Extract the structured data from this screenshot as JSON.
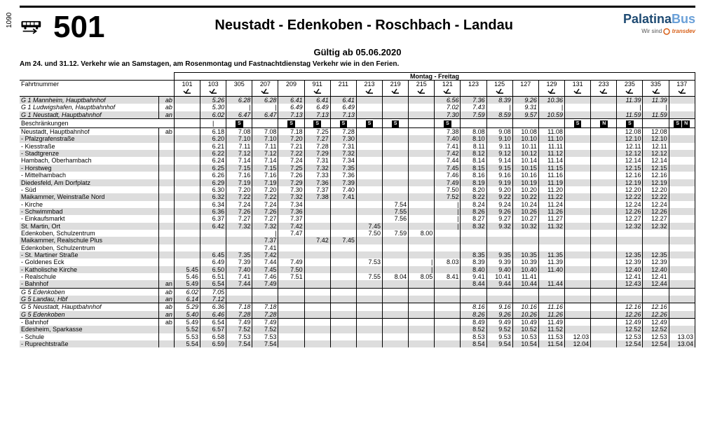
{
  "side_number": "1090",
  "route_number": "501",
  "route_title": "Neustadt - Edenkoben - Roschbach - Landau",
  "brand": {
    "main_a": "Palatina",
    "main_b": "Bus",
    "sub_pre": "Wir sind ",
    "sub_orange": "transdev"
  },
  "valid_from": "Gültig ab 05.06.2020",
  "holiday_note": "Am 24. und 31.12. Verkehr wie an Samstagen, am Rosenmontag und Fastnachtdienstag Verkehr wie in den Ferien.",
  "days_header": "Montag - Freitag",
  "trip_label": "Fahrtnummer",
  "restrict_label": "Beschränkungen",
  "trips": [
    "101",
    "103",
    "305",
    "207",
    "209",
    "911",
    "211",
    "213",
    "219",
    "215",
    "121",
    "123",
    "125",
    "127",
    "129",
    "131",
    "233",
    "235",
    "335",
    "137"
  ],
  "xicon_cols": [
    0,
    1,
    3,
    5,
    7,
    8,
    9,
    10,
    12,
    14,
    15,
    16,
    17,
    18,
    19
  ],
  "s_cols": [
    2,
    4,
    5,
    6,
    7,
    8,
    10,
    15,
    17,
    19
  ],
  "n_cols": [
    16,
    19
  ],
  "stops": [
    {
      "n": "G 1 Mannheim, Hauptbahnhof",
      "d": "ab",
      "sh": 1,
      "it": 1,
      "bt": 1,
      "t": [
        "",
        "5.26",
        "6.28",
        "6.28",
        "6.41",
        "6.41",
        "6.41",
        "",
        "",
        "",
        "6.56",
        "7.36",
        "8.39",
        "9.26",
        "10.36",
        "",
        "",
        "11.39",
        "11.39",
        ""
      ]
    },
    {
      "n": "G 1 Ludwigshafen, Hauptbahnhof",
      "d": "ab",
      "sh": 0,
      "it": 1,
      "t": [
        "",
        "5.30",
        "|",
        "|",
        "6.49",
        "6.49",
        "6.49",
        "",
        "",
        "",
        "7.02",
        "7.43",
        "|",
        "9.31",
        "|",
        "",
        "",
        "|",
        "|",
        ""
      ]
    },
    {
      "n": "G 1 Neustadt, Hauptbahnhof",
      "d": "an",
      "sh": 1,
      "it": 1,
      "bb": 1,
      "t": [
        "",
        "6.02",
        "6.47",
        "6.47",
        "7.13",
        "7.13",
        "7.13",
        "",
        "",
        "",
        "7.30",
        "7.59",
        "8.59",
        "9.57",
        "10.59",
        "",
        "",
        "11.59",
        "11.59",
        ""
      ]
    },
    {
      "n": "Neustadt, Hauptbahnhof",
      "d": "ab",
      "sh": 0,
      "bt": 1,
      "t": [
        "",
        "6.18",
        "7.08",
        "7.08",
        "7.18",
        "7.25",
        "7.28",
        "",
        "",
        "",
        "7.38",
        "8.08",
        "9.08",
        "10.08",
        "11.08",
        "",
        "",
        "12.08",
        "12.08",
        ""
      ]
    },
    {
      "n": "- Pfalzgrafenstraße",
      "d": "",
      "sh": 1,
      "t": [
        "",
        "6.20",
        "7.10",
        "7.10",
        "7.20",
        "7.27",
        "7.30",
        "",
        "",
        "",
        "7.40",
        "8.10",
        "9.10",
        "10.10",
        "11.10",
        "",
        "",
        "12.10",
        "12.10",
        ""
      ]
    },
    {
      "n": "- Kiesstraße",
      "d": "",
      "sh": 0,
      "t": [
        "",
        "6.21",
        "7.11",
        "7.11",
        "7.21",
        "7.28",
        "7.31",
        "",
        "",
        "",
        "7.41",
        "8.11",
        "9.11",
        "10.11",
        "11.11",
        "",
        "",
        "12.11",
        "12.11",
        ""
      ]
    },
    {
      "n": "- Stadtgrenze",
      "d": "",
      "sh": 1,
      "t": [
        "",
        "6.22",
        "7.12",
        "7.12",
        "7.22",
        "7.29",
        "7.32",
        "",
        "",
        "",
        "7.42",
        "8.12",
        "9.12",
        "10.12",
        "11.12",
        "",
        "",
        "12.12",
        "12.12",
        ""
      ]
    },
    {
      "n": "Hambach, Oberhambach",
      "d": "",
      "sh": 0,
      "t": [
        "",
        "6.24",
        "7.14",
        "7.14",
        "7.24",
        "7.31",
        "7.34",
        "",
        "",
        "",
        "7.44",
        "8.14",
        "9.14",
        "10.14",
        "11.14",
        "",
        "",
        "12.14",
        "12.14",
        ""
      ]
    },
    {
      "n": "- Horstweg",
      "d": "",
      "sh": 1,
      "t": [
        "",
        "6.25",
        "7.15",
        "7.15",
        "7.25",
        "7.32",
        "7.35",
        "",
        "",
        "",
        "7.45",
        "8.15",
        "9.15",
        "10.15",
        "11.15",
        "",
        "",
        "12.15",
        "12.15",
        ""
      ]
    },
    {
      "n": "- Mittelhambach",
      "d": "",
      "sh": 0,
      "t": [
        "",
        "6.26",
        "7.16",
        "7.16",
        "7.26",
        "7.33",
        "7.36",
        "",
        "",
        "",
        "7.46",
        "8.16",
        "9.16",
        "10.16",
        "11.16",
        "",
        "",
        "12.16",
        "12.16",
        ""
      ]
    },
    {
      "n": "Diedesfeld, Am Dorfplatz",
      "d": "",
      "sh": 1,
      "t": [
        "",
        "6.29",
        "7.19",
        "7.19",
        "7.29",
        "7.36",
        "7.39",
        "",
        "",
        "",
        "7.49",
        "8.19",
        "9.19",
        "10.19",
        "11.19",
        "",
        "",
        "12.19",
        "12.19",
        ""
      ]
    },
    {
      "n": "- Süd",
      "d": "",
      "sh": 0,
      "t": [
        "",
        "6.30",
        "7.20",
        "7.20",
        "7.30",
        "7.37",
        "7.40",
        "",
        "",
        "",
        "7.50",
        "8.20",
        "9.20",
        "10.20",
        "11.20",
        "",
        "",
        "12.20",
        "12.20",
        ""
      ]
    },
    {
      "n": "Maikammer, Weinstraße Nord",
      "d": "",
      "sh": 1,
      "t": [
        "",
        "6.32",
        "7.22",
        "7.22",
        "7.32",
        "7.38",
        "7.41",
        "",
        "",
        "",
        "7.52",
        "8.22",
        "9.22",
        "10.22",
        "11.22",
        "",
        "",
        "12.22",
        "12.22",
        ""
      ]
    },
    {
      "n": "- Kirche",
      "d": "",
      "sh": 0,
      "t": [
        "",
        "6.34",
        "7.24",
        "7.24",
        "7.34",
        "",
        "",
        "",
        "7.54",
        "",
        "|",
        "8.24",
        "9.24",
        "10.24",
        "11.24",
        "",
        "",
        "12.24",
        "12.24",
        ""
      ]
    },
    {
      "n": "- Schwimmbad",
      "d": "",
      "sh": 1,
      "t": [
        "",
        "6.36",
        "7.26",
        "7.26",
        "7.36",
        "",
        "",
        "",
        "7.55",
        "",
        "|",
        "8.26",
        "9.26",
        "10.26",
        "11.26",
        "",
        "",
        "12.26",
        "12.26",
        ""
      ]
    },
    {
      "n": "- Einkaufsmarkt",
      "d": "",
      "sh": 0,
      "t": [
        "",
        "6.37",
        "7.27",
        "7.27",
        "7.37",
        "",
        "",
        "",
        "7.56",
        "",
        "|",
        "8.27",
        "9.27",
        "10.27",
        "11.27",
        "",
        "",
        "12.27",
        "12.27",
        ""
      ]
    },
    {
      "n": "St. Martin, Ort",
      "d": "",
      "sh": 1,
      "t": [
        "",
        "6.42",
        "7.32",
        "7.32",
        "7.42",
        "",
        "",
        "7.45",
        "",
        "",
        "|",
        "8.32",
        "9.32",
        "10.32",
        "11.32",
        "",
        "",
        "12.32",
        "12.32",
        ""
      ]
    },
    {
      "n": "Edenkoben, Schulzentrum",
      "d": "",
      "sh": 0,
      "t": [
        "",
        "",
        "",
        "|",
        "7.47",
        "",
        "",
        "7.50",
        "7.59",
        "8.00",
        "",
        "",
        "",
        "",
        "",
        "",
        "",
        "",
        "",
        ""
      ]
    },
    {
      "n": "Maikammer, Realschule Plus",
      "d": "",
      "sh": 1,
      "t": [
        "",
        "",
        "",
        "7.37",
        "",
        "7.42",
        "7.45",
        "",
        "",
        "",
        "",
        "",
        "",
        "",
        "",
        "",
        "",
        "",
        "",
        ""
      ]
    },
    {
      "n": "Edenkoben, Schulzentrum",
      "d": "",
      "sh": 0,
      "t": [
        "",
        "",
        "",
        "7.41",
        "",
        "",
        "",
        "",
        "",
        "",
        "",
        "",
        "",
        "",
        "",
        "",
        "",
        "",
        "",
        ""
      ]
    },
    {
      "n": "- St. Martiner Straße",
      "d": "",
      "sh": 1,
      "t": [
        "",
        "6.45",
        "7.35",
        "7.42",
        "",
        "",
        "",
        "",
        "",
        "",
        "",
        "8.35",
        "9.35",
        "10.35",
        "11.35",
        "",
        "",
        "12.35",
        "12.35",
        ""
      ]
    },
    {
      "n": "- Goldenes Eck",
      "d": "",
      "sh": 0,
      "t": [
        "",
        "6.49",
        "7.39",
        "7.44",
        "7.49",
        "",
        "",
        "7.53",
        "",
        "|",
        "8.03",
        "8.39",
        "9.39",
        "10.39",
        "11.39",
        "",
        "",
        "12.39",
        "12.39",
        ""
      ]
    },
    {
      "n": "- Katholische Kirche",
      "d": "",
      "sh": 1,
      "t": [
        "5.45",
        "6.50",
        "7.40",
        "7.45",
        "7.50",
        "",
        "",
        "",
        "",
        "|",
        "",
        "8.40",
        "9.40",
        "10.40",
        "11.40",
        "",
        "",
        "12.40",
        "12.40",
        ""
      ]
    },
    {
      "n": "- Realschule",
      "d": "",
      "sh": 0,
      "t": [
        "5.46",
        "6.51",
        "7.41",
        "7.46",
        "7.51",
        "",
        "",
        "7.55",
        "8.04",
        "8.05",
        "8.41",
        "9.41",
        "10.41",
        "11.41",
        "",
        "",
        "",
        "12.41",
        "12.41",
        ""
      ]
    },
    {
      "n": "- Bahnhof",
      "d": "an",
      "sh": 1,
      "bb": 1,
      "t": [
        "5.49",
        "6.54",
        "7.44",
        "7.49",
        "",
        "",
        "",
        "",
        "",
        "",
        "",
        "8.44",
        "9.44",
        "10.44",
        "11.44",
        "",
        "",
        "12.43",
        "12.44",
        ""
      ]
    },
    {
      "n": "G 5 Edenkoben",
      "d": "ab",
      "sh": 0,
      "it": 1,
      "bt": 1,
      "t": [
        "6.02",
        "7.05",
        "",
        "",
        "",
        "",
        "",
        "",
        "",
        "",
        "",
        "",
        "",
        "",
        "",
        "",
        "",
        "",
        "",
        ""
      ]
    },
    {
      "n": "G 5 Landau, Hbf",
      "d": "an",
      "sh": 1,
      "it": 1,
      "bb": 1,
      "t": [
        "6.14",
        "7.12",
        "",
        "",
        "",
        "",
        "",
        "",
        "",
        "",
        "",
        "",
        "",
        "",
        "",
        "",
        "",
        "",
        "",
        ""
      ]
    },
    {
      "n": "G 5 Neustadt, Hauptbahnhof",
      "d": "ab",
      "sh": 0,
      "it": 1,
      "bt": 1,
      "t": [
        "5.29",
        "6.36",
        "7.18",
        "7.18",
        "",
        "",
        "",
        "",
        "",
        "",
        "",
        "8.16",
        "9.16",
        "10.16",
        "11.16",
        "",
        "",
        "12.16",
        "12.16",
        ""
      ]
    },
    {
      "n": "G 5 Edenkoben",
      "d": "an",
      "sh": 1,
      "it": 1,
      "bb": 1,
      "t": [
        "5.40",
        "6.46",
        "7.28",
        "7.28",
        "",
        "",
        "",
        "",
        "",
        "",
        "",
        "8.26",
        "9.26",
        "10.26",
        "11.26",
        "",
        "",
        "12.26",
        "12.26",
        ""
      ]
    },
    {
      "n": "- Bahnhof",
      "d": "ab",
      "sh": 0,
      "bt": 1,
      "t": [
        "5.49",
        "6.54",
        "7.49",
        "7.49",
        "",
        "",
        "",
        "",
        "",
        "",
        "",
        "8.49",
        "9.49",
        "10.49",
        "11.49",
        "",
        "",
        "12.49",
        "12.49",
        ""
      ]
    },
    {
      "n": "Edesheim, Sparkasse",
      "d": "",
      "sh": 1,
      "t": [
        "5.52",
        "6.57",
        "7.52",
        "7.52",
        "",
        "",
        "",
        "",
        "",
        "",
        "",
        "8.52",
        "9.52",
        "10.52",
        "11.52",
        "",
        "",
        "12.52",
        "12.52",
        ""
      ]
    },
    {
      "n": "- Schule",
      "d": "",
      "sh": 0,
      "t": [
        "5.53",
        "6.58",
        "7.53",
        "7.53",
        "",
        "",
        "",
        "",
        "",
        "",
        "",
        "8.53",
        "9.53",
        "10.53",
        "11.53",
        "12.03",
        "",
        "12.53",
        "12.53",
        "13.03"
      ]
    },
    {
      "n": "- Ruprechtstraße",
      "d": "",
      "sh": 1,
      "t": [
        "5.54",
        "6.59",
        "7.54",
        "7.54",
        "",
        "",
        "",
        "",
        "",
        "",
        "",
        "8.54",
        "9.54",
        "10.54",
        "11.54",
        "12.04",
        "",
        "12.54",
        "12.54",
        "13.04"
      ]
    }
  ]
}
